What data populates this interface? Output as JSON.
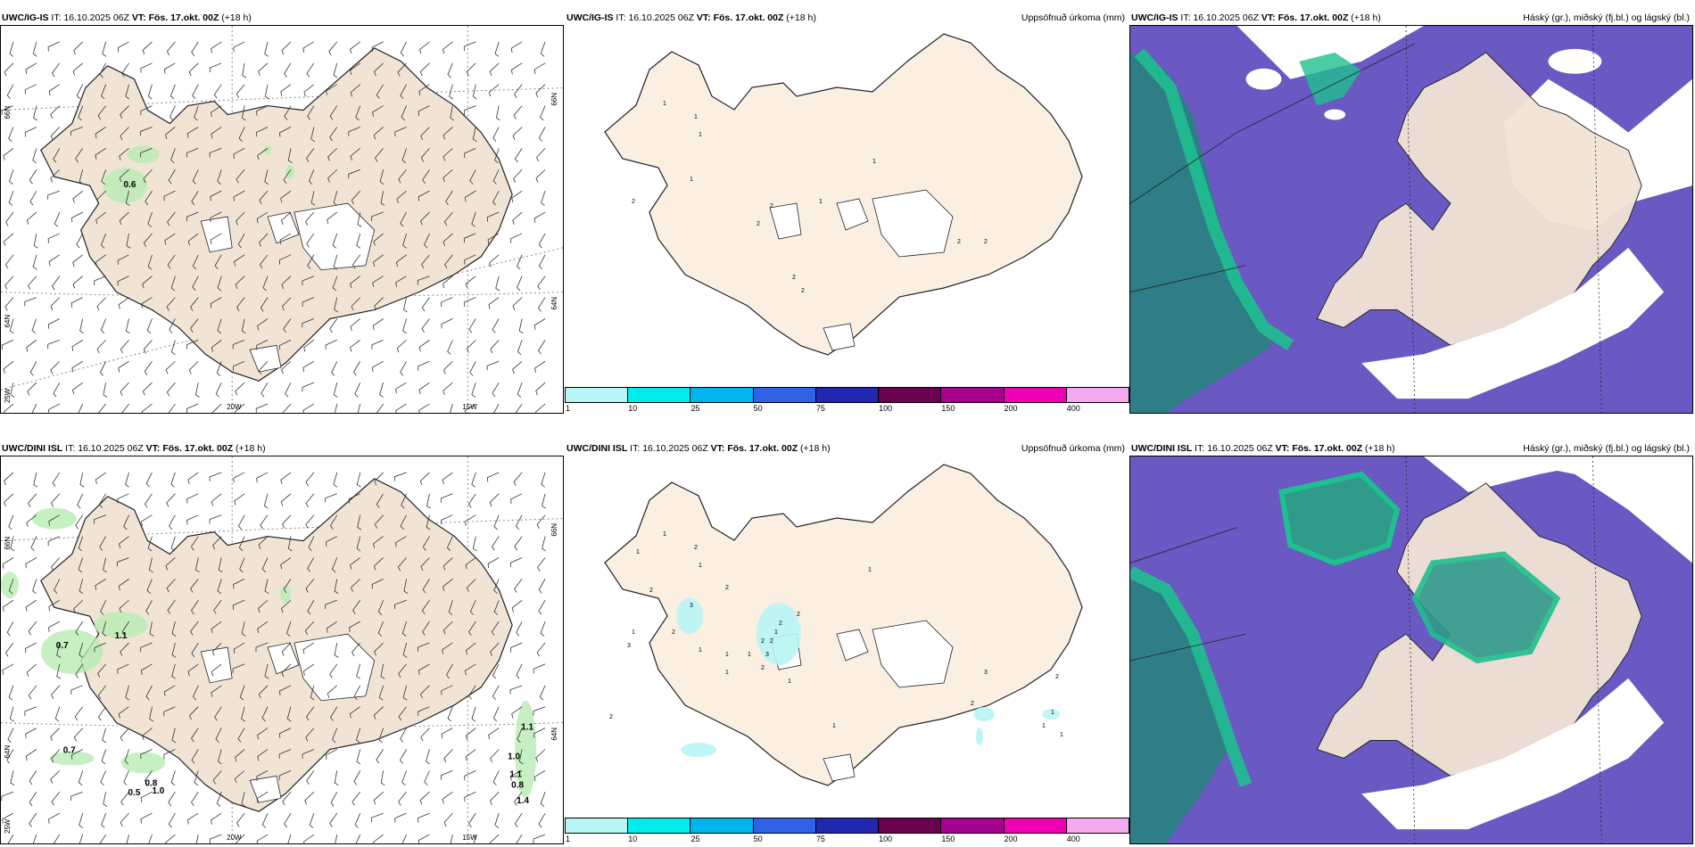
{
  "rows": [
    {
      "model": "UWC/IG-IS",
      "header": {
        "it_label": "IT:",
        "it_value": "16.10.2025 06Z",
        "vt_label": "VT:",
        "vt_value": "Fös. 17.okt. 00Z",
        "lead": "(+18 h)"
      },
      "wind_panel": {
        "lat_labels": [
          "66N",
          "64N"
        ],
        "lon_labels": [
          "25W",
          "20W",
          "15W"
        ],
        "precip_values": [
          "0.6"
        ]
      },
      "precip_panel": {
        "title": "Uppsöfnuð úrkoma (mm)",
        "point_labels": [
          "1",
          "1",
          "1",
          "1",
          "2",
          "2",
          "2",
          "1",
          "1",
          "2",
          "2",
          "2",
          "2"
        ]
      },
      "cloud_panel": {
        "title": "Háský (gr.), miðský (fj.bl.) og lágský (bl.)"
      }
    },
    {
      "model": "UWC/DINI ISL",
      "header": {
        "it_label": "IT:",
        "it_value": "16.10.2025 06Z",
        "vt_label": "VT:",
        "vt_value": "Fös. 17.okt. 00Z",
        "lead": "(+18 h)"
      },
      "wind_panel": {
        "lat_labels": [
          "66N",
          "64N"
        ],
        "lon_labels": [
          "25W",
          "20W",
          "15W"
        ],
        "precip_values": [
          "0.7",
          "1.1",
          "0.7",
          "0.8",
          "0.5",
          "1.0",
          "1.1",
          "1.0",
          "1.1",
          "0.8",
          "1.4"
        ]
      },
      "precip_panel": {
        "title": "Uppsöfnuð úrkoma (mm)",
        "point_labels": [
          "1",
          "2",
          "1",
          "1",
          "2",
          "2",
          "3",
          "1",
          "3",
          "2",
          "1",
          "1",
          "2",
          "2",
          "2",
          "1",
          "3",
          "2",
          "1",
          "2",
          "1",
          "1",
          "1",
          "3",
          "2",
          "2",
          "1",
          "1",
          "1",
          "2",
          "1"
        ]
      },
      "cloud_panel": {
        "title": "Háský (gr.), miðský (fj.bl.) og lágský (bl.)"
      }
    }
  ],
  "colorbar": {
    "labels": [
      "1",
      "10",
      "25",
      "50",
      "75",
      "100",
      "150",
      "200",
      "400"
    ],
    "colors": [
      "#b8f6f6",
      "#00ecec",
      "#00b4ee",
      "#2f62e6",
      "#2127b0",
      "#6a0050",
      "#a8008f",
      "#ef00b4",
      "#f3aaf0"
    ]
  },
  "colors": {
    "land": "#f2e4d5",
    "land_light": "#fbefe2",
    "cloud_high": "#6a59c2",
    "cloud_mid": "#1fbf8f",
    "cloud_low_sea": "#2f7d86",
    "precip_green": "#b8ecb3"
  }
}
